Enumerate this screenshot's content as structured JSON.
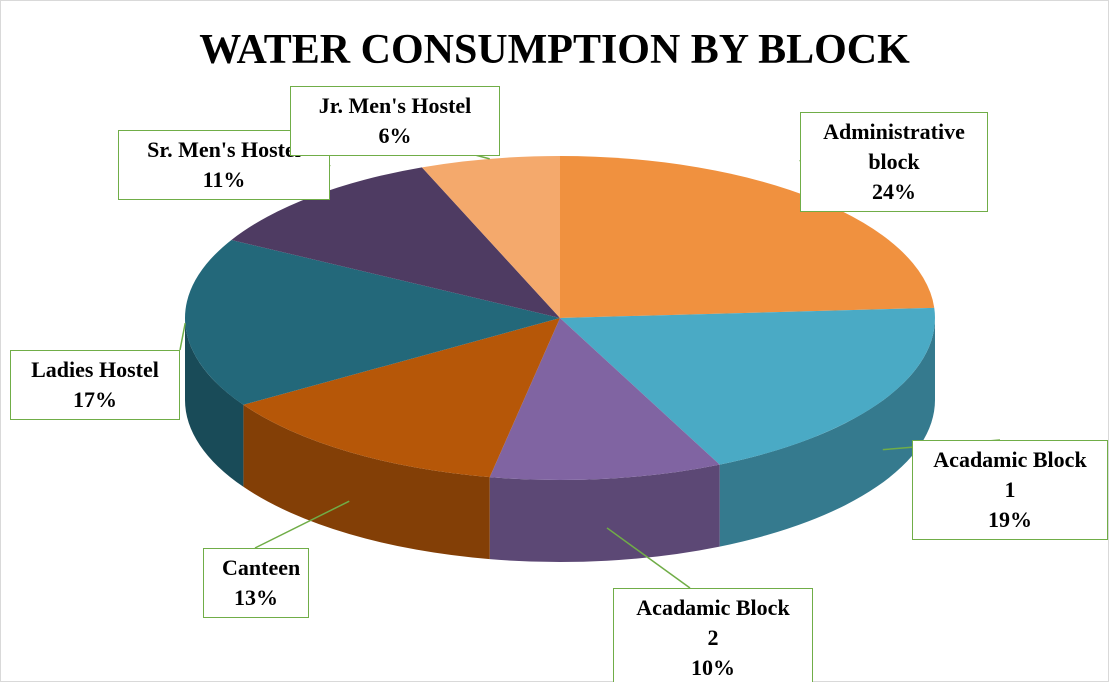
{
  "chart_data": {
    "type": "pie",
    "title": "WATER CONSUMPTION BY BLOCK",
    "categories": [
      "Administrative block",
      "Acadamic Block 1",
      "Acadamic Block 2",
      "Canteen",
      "Ladies Hostel",
      "Sr. Men's Hostel",
      "Jr. Men's Hostel"
    ],
    "values": [
      24,
      19,
      10,
      13,
      17,
      11,
      6
    ],
    "value_labels": [
      "24%",
      "19%",
      "10%",
      "13%",
      "17%",
      "11%",
      "6%"
    ],
    "colors": [
      "#f0913f",
      "#4aaac5",
      "#8064a2",
      "#b65708",
      "#23687a",
      "#4e3b62",
      "#f4a96c"
    ]
  }
}
